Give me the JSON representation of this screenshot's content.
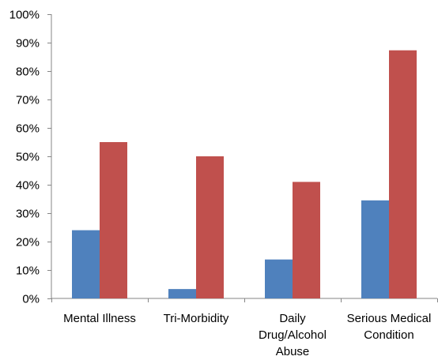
{
  "chart_data": {
    "type": "bar",
    "title": "",
    "xlabel": "",
    "ylabel": "",
    "categories": [
      [
        "Mental Illness"
      ],
      [
        "Tri-Morbidity"
      ],
      [
        "Daily",
        "Drug/Alcohol",
        "Abuse"
      ]
    ],
    "categories_alt": [],
    "series": [
      {
        "values": [
          0.24,
          0.033,
          0.137
        ],
        "color": "#4f81bd"
      },
      {
        "values": [
          0.55,
          0.5,
          0.41
        ],
        "color": "#c0504d"
      }
    ],
    "ylim": [
      0,
      1
    ],
    "yticks": [
      0,
      0.1,
      0.2,
      0.3,
      0.4,
      0.5,
      0.6,
      0.7,
      0.8,
      0.9,
      1.0
    ],
    "ytick_labels": [
      "0%",
      "10%",
      "20%",
      "30%",
      "40%",
      "50%",
      "60%",
      "70%",
      "80%",
      "90%",
      "100%"
    ],
    "grid": false,
    "legend": "none"
  }
}
